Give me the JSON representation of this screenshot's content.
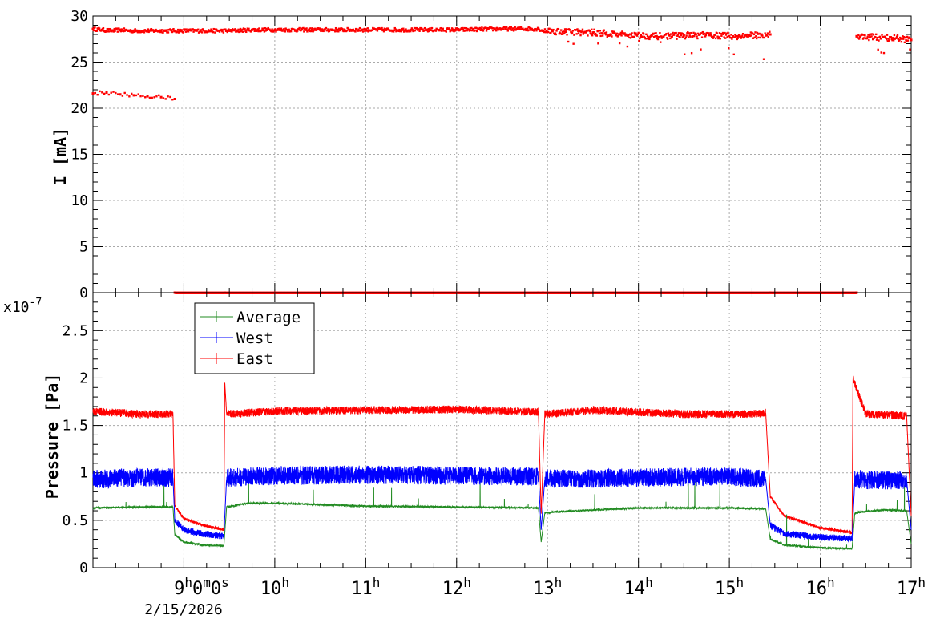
{
  "chart_data": [
    {
      "type": "scatter",
      "ylabel": "I [mA]",
      "ylim": [
        0,
        30
      ],
      "xlim": [
        "8:00",
        "17:00"
      ],
      "x_axis_unit": "hour of day",
      "grid": true,
      "y_ticks": [
        "30",
        "25",
        "20",
        "15",
        "10",
        "5",
        "0"
      ],
      "color": "#ff0000",
      "series": [
        {
          "x": [
            8.0,
            8.1,
            8.2,
            8.3,
            8.4,
            8.5,
            8.6,
            8.7,
            8.8,
            8.9,
            9.5,
            9.75,
            10.0,
            10.5,
            11.0,
            11.5,
            12.0,
            12.5,
            12.9,
            12.95,
            13.2,
            13.5,
            13.8,
            14.2,
            14.5,
            14.8,
            15.1,
            15.45,
            16.4,
            16.6,
            16.8,
            17.0
          ],
          "y": [
            28.6,
            28.5,
            28.4,
            28.5,
            28.4,
            28.4,
            28.4,
            28.4,
            28.4,
            28.4,
            28.4,
            28.5,
            28.5,
            28.5,
            28.5,
            28.5,
            28.5,
            28.6,
            28.6,
            28.4,
            28.3,
            28.2,
            28.0,
            27.8,
            27.9,
            27.9,
            27.8,
            28.0,
            27.8,
            27.7,
            27.6,
            27.4
          ]
        },
        {
          "x": [
            8.0,
            8.15,
            8.3,
            8.45,
            8.6,
            8.75,
            8.9
          ],
          "y": [
            21.6,
            21.7,
            21.5,
            21.4,
            21.3,
            21.2,
            21.0
          ]
        },
        {
          "x": [
            8.9,
            9.45,
            12.9,
            12.95,
            15.45,
            16.4
          ],
          "y": [
            0,
            0,
            0,
            0,
            0,
            0
          ]
        }
      ]
    },
    {
      "type": "line",
      "ylabel": "Pressure [Pa]",
      "y_exponent": "x10",
      "y_exponent_power": "-7",
      "ylim": [
        0,
        2.9
      ],
      "y_ticks": [
        "2.5",
        "2",
        "1.5",
        "1",
        "0.5",
        "0"
      ],
      "x_ticks": [
        {
          "h": 9,
          "label": "9",
          "sup": "h",
          "rest": "0",
          "rest_sup": "m",
          "rest2": "0",
          "rest2_sup": "s"
        },
        {
          "h": 10,
          "label": "10",
          "sup": "h"
        },
        {
          "h": 11,
          "label": "11",
          "sup": "h"
        },
        {
          "h": 12,
          "label": "12",
          "sup": "h"
        },
        {
          "h": 13,
          "label": "13",
          "sup": "h"
        },
        {
          "h": 14,
          "label": "14",
          "sup": "h"
        },
        {
          "h": 15,
          "label": "15",
          "sup": "h"
        },
        {
          "h": 16,
          "label": "16",
          "sup": "h"
        },
        {
          "h": 17,
          "label": "17",
          "sup": "h"
        }
      ],
      "date_label": "2/15/2026",
      "grid": true,
      "legend_position": "top-left",
      "series": [
        {
          "name": "Average",
          "color": "#228b22",
          "x": [
            8.0,
            8.5,
            8.88,
            8.9,
            9.0,
            9.2,
            9.44,
            9.47,
            9.7,
            10.0,
            11.0,
            12.0,
            12.9,
            12.93,
            12.97,
            13.3,
            14.0,
            15.0,
            15.4,
            15.45,
            15.6,
            16.0,
            16.35,
            16.38,
            16.7,
            16.95,
            17.0
          ],
          "y": [
            0.63,
            0.64,
            0.64,
            0.35,
            0.27,
            0.24,
            0.23,
            0.64,
            0.68,
            0.68,
            0.65,
            0.64,
            0.63,
            0.27,
            0.58,
            0.6,
            0.63,
            0.63,
            0.62,
            0.3,
            0.24,
            0.21,
            0.2,
            0.58,
            0.61,
            0.6,
            0.25
          ]
        },
        {
          "name": "West",
          "color": "#0000ff",
          "x": [
            8.0,
            8.5,
            8.88,
            8.9,
            9.0,
            9.2,
            9.44,
            9.47,
            10.0,
            11.0,
            12.0,
            12.9,
            12.93,
            12.97,
            13.5,
            14.0,
            15.0,
            15.4,
            15.45,
            15.6,
            16.0,
            16.35,
            16.38,
            16.7,
            16.95,
            17.0
          ],
          "y": [
            0.93,
            0.95,
            0.95,
            0.5,
            0.4,
            0.36,
            0.33,
            0.95,
            0.97,
            0.98,
            0.97,
            0.96,
            0.4,
            0.94,
            0.94,
            0.95,
            0.96,
            0.93,
            0.45,
            0.36,
            0.32,
            0.31,
            0.93,
            0.92,
            0.93,
            0.4
          ]
        },
        {
          "name": "East",
          "color": "#ff0000",
          "x": [
            8.0,
            8.5,
            8.88,
            8.9,
            9.0,
            9.2,
            9.44,
            9.45,
            9.47,
            10.0,
            11.0,
            12.0,
            12.9,
            12.93,
            12.97,
            13.5,
            14.5,
            15.2,
            15.4,
            15.45,
            15.6,
            16.0,
            16.35,
            16.36,
            16.5,
            16.95,
            17.0
          ],
          "y": [
            1.65,
            1.62,
            1.62,
            0.65,
            0.52,
            0.45,
            0.4,
            1.95,
            1.62,
            1.65,
            1.66,
            1.67,
            1.64,
            0.57,
            1.62,
            1.66,
            1.62,
            1.62,
            1.63,
            0.75,
            0.55,
            0.42,
            0.37,
            2.0,
            1.62,
            1.6,
            0.55
          ]
        }
      ]
    }
  ]
}
